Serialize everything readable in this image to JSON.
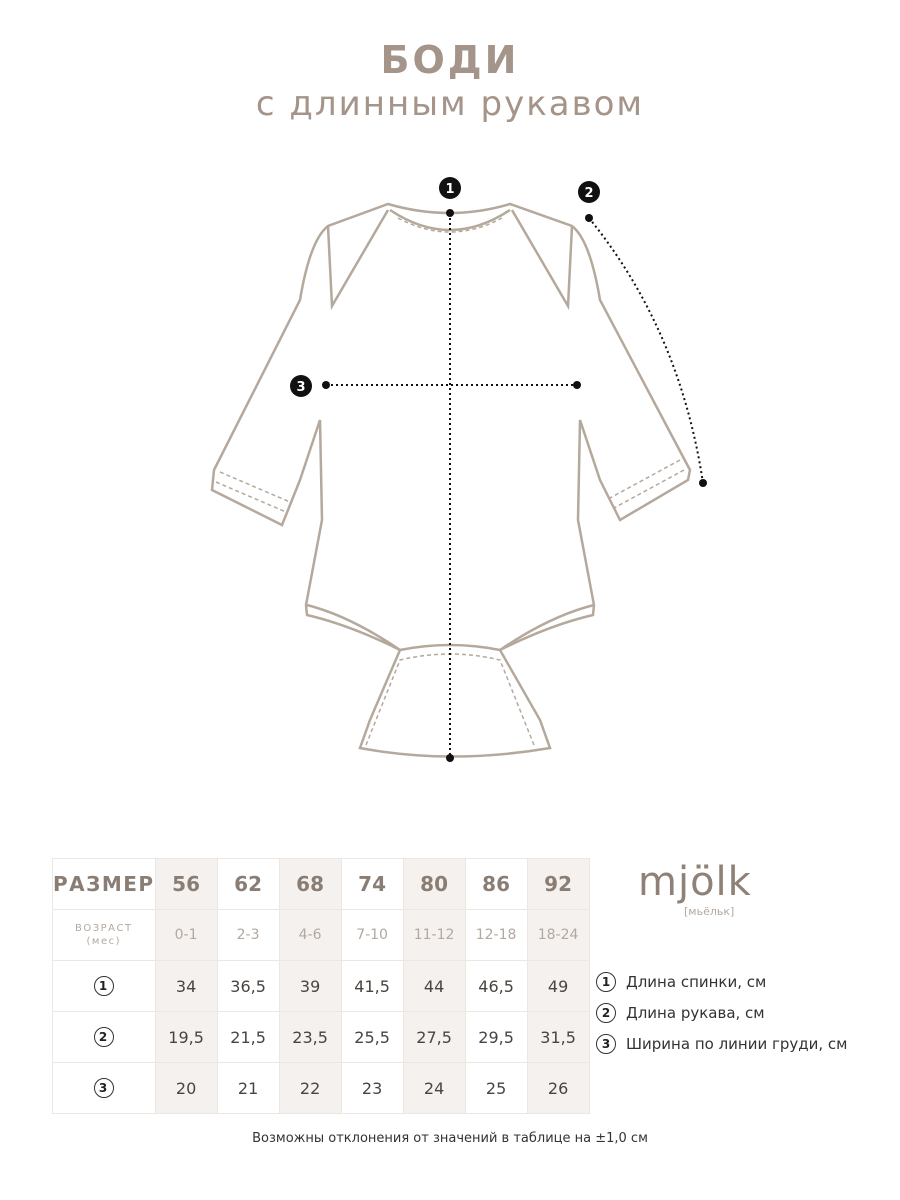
{
  "title": "БОДИ",
  "subtitle": "с длинным рукавом",
  "markers": [
    "1",
    "2",
    "3"
  ],
  "table": {
    "size_label": "РАЗМЕР",
    "age_label": "ВОЗРАСТ",
    "age_unit": "(мес)",
    "sizes": [
      "56",
      "62",
      "68",
      "74",
      "80",
      "86",
      "92"
    ],
    "ages": [
      "0-1",
      "2-3",
      "4-6",
      "7-10",
      "11-12",
      "12-18",
      "18-24"
    ],
    "rows": [
      {
        "marker": "1",
        "values": [
          "34",
          "36,5",
          "39",
          "41,5",
          "44",
          "46,5",
          "49"
        ]
      },
      {
        "marker": "2",
        "values": [
          "19,5",
          "21,5",
          "23,5",
          "25,5",
          "27,5",
          "29,5",
          "31,5"
        ]
      },
      {
        "marker": "3",
        "values": [
          "20",
          "21",
          "22",
          "23",
          "24",
          "25",
          "26"
        ]
      }
    ]
  },
  "brand": {
    "name": "mjölk",
    "transcription": "[мьёльк]"
  },
  "legend": [
    {
      "marker": "1",
      "text": "Длина спинки, см"
    },
    {
      "marker": "2",
      "text": "Длина рукава, см"
    },
    {
      "marker": "3",
      "text": "Ширина по линии груди, см"
    }
  ],
  "note": "Возможны отклонения от значений в таблице на ±1,0 см",
  "colors": {
    "accent": "#a49489",
    "outline": "#b5a89c",
    "shade": "#f4f1ef"
  }
}
